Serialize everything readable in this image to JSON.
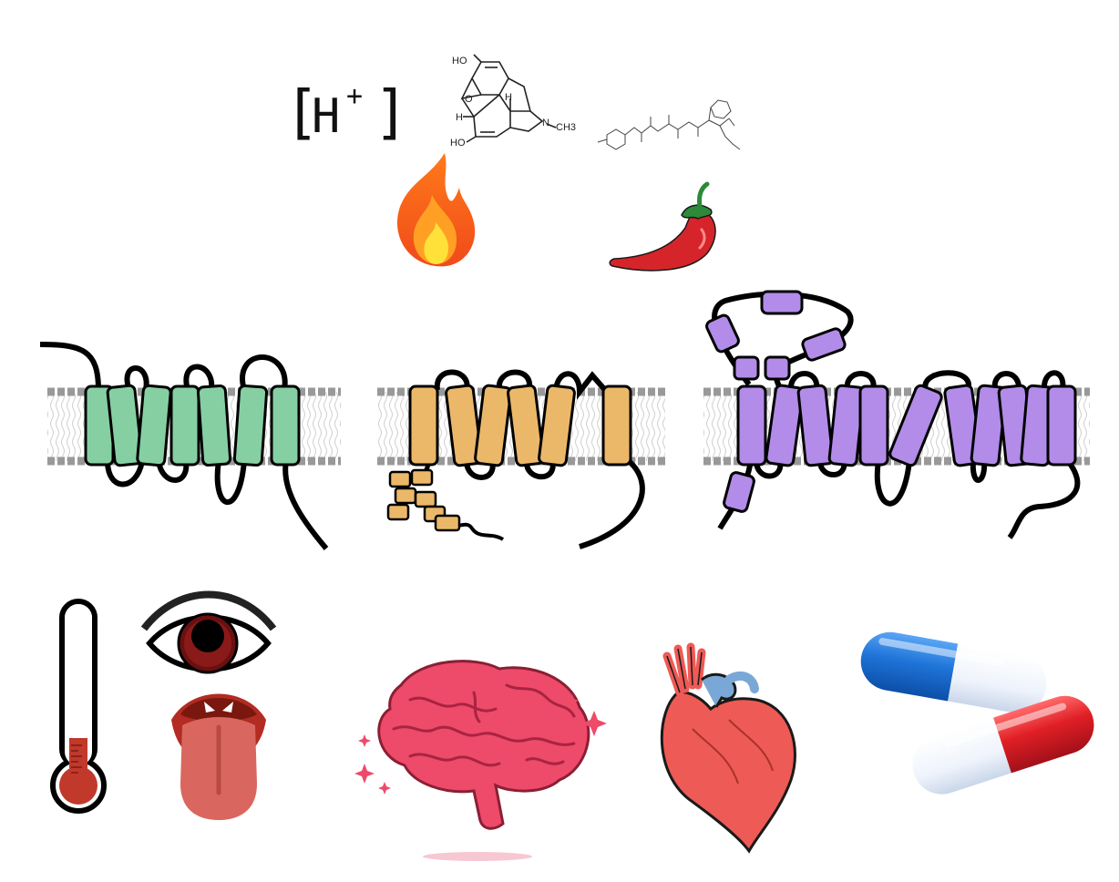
{
  "proton": {
    "label": "H",
    "charge": "+",
    "open": "[",
    "close": "]"
  },
  "morphine": {
    "ho_top": "HO",
    "o": "O",
    "h_left": "H",
    "ho_bottom": "HO",
    "h_mid": "H",
    "n": "N",
    "ch3": "CH3"
  },
  "colors": {
    "receptor_green": "#86cfa3",
    "receptor_orange": "#ebb86a",
    "receptor_purple": "#b28ce8",
    "membrane_head": "#999999",
    "flame_outer": "#f25a1d",
    "flame_inner": "#ffcf2e",
    "chili_red": "#d5252a",
    "brain_pink": "#ee4a6a",
    "heart_red": "#ee5a55",
    "pill_blue": "#1f74d8",
    "pill_red": "#e01f25"
  },
  "icons": [
    "proton-icon",
    "morphine-structure-icon",
    "peptide-structure-icon",
    "flame-icon",
    "chili-pepper-icon",
    "gpcr-receptor-icon",
    "trp-channel-icon",
    "piezo-channel-icon",
    "thermometer-icon",
    "eye-icon",
    "tongue-icon",
    "brain-icon",
    "heart-icon",
    "pills-icon"
  ]
}
